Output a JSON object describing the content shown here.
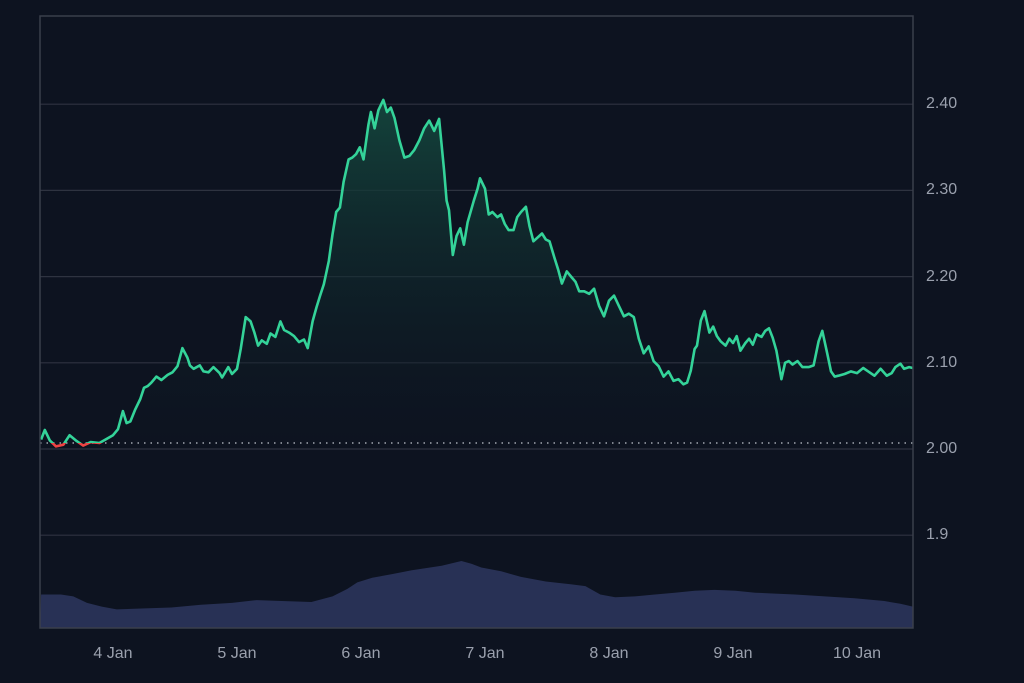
{
  "chart_data": {
    "type": "area",
    "title": "",
    "xlabel": "",
    "ylabel": "",
    "ylim": [
      1.81,
      2.51
    ],
    "grid": true,
    "legend": null,
    "baseline": 2.007,
    "colors": {
      "background": "#0d1320",
      "grid": "#2e3340",
      "border": "#3a3f4b",
      "line_up": "#34d399",
      "line_down": "#ef4444",
      "fill_top": "#14463d",
      "volume": "#2a3358",
      "tick_text": "#9aa0ad",
      "baseline_dots": "#c8ccd4"
    },
    "y_ticks": [
      {
        "label": "2.40",
        "value": 2.4
      },
      {
        "label": "2.30",
        "value": 2.3
      },
      {
        "label": "2.20",
        "value": 2.2
      },
      {
        "label": "2.10",
        "value": 2.1
      },
      {
        "label": "2.00",
        "value": 2.0
      },
      {
        "label": "1.9",
        "value": 1.9
      }
    ],
    "x_ticks": [
      {
        "label": "4 Jan",
        "day": 4.0
      },
      {
        "label": "5 Jan",
        "day": 5.0
      },
      {
        "label": "6 Jan",
        "day": 6.0
      },
      {
        "label": "7 Jan",
        "day": 7.0
      },
      {
        "label": "8 Jan",
        "day": 8.0
      },
      {
        "label": "9 Jan",
        "day": 9.0
      },
      {
        "label": "10 Jan",
        "day": 10.0
      }
    ],
    "x_range_days": [
      3.42,
      10.45
    ],
    "series": [
      {
        "name": "price",
        "x": [
          3.42,
          3.45,
          3.49,
          3.54,
          3.6,
          3.65,
          3.7,
          3.76,
          3.82,
          3.89,
          3.94,
          4.0,
          4.04,
          4.08,
          4.11,
          4.14,
          4.18,
          4.22,
          4.25,
          4.28,
          4.31,
          4.35,
          4.39,
          4.44,
          4.48,
          4.52,
          4.56,
          4.6,
          4.62,
          4.65,
          4.7,
          4.73,
          4.77,
          4.81,
          4.86,
          4.88,
          4.93,
          4.96,
          5.0,
          5.03,
          5.07,
          5.11,
          5.14,
          5.17,
          5.2,
          5.24,
          5.27,
          5.31,
          5.35,
          5.38,
          5.42,
          5.46,
          5.5,
          5.54,
          5.57,
          5.61,
          5.64,
          5.67,
          5.7,
          5.74,
          5.77,
          5.8,
          5.83,
          5.86,
          5.9,
          5.93,
          5.96,
          5.99,
          6.02,
          6.06,
          6.08,
          6.11,
          6.14,
          6.18,
          6.21,
          6.24,
          6.27,
          6.31,
          6.35,
          6.39,
          6.43,
          6.47,
          6.51,
          6.55,
          6.59,
          6.63,
          6.67,
          6.69,
          6.71,
          6.74,
          6.77,
          6.8,
          6.83,
          6.86,
          6.91,
          6.94,
          6.96,
          7.0,
          7.03,
          7.06,
          7.1,
          7.13,
          7.16,
          7.19,
          7.23,
          7.26,
          7.29,
          7.33,
          7.36,
          7.39,
          7.43,
          7.46,
          7.49,
          7.52,
          7.56,
          7.59,
          7.62,
          7.66,
          7.7,
          7.73,
          7.76,
          7.8,
          7.84,
          7.88,
          7.92,
          7.96,
          8.0,
          8.04,
          8.08,
          8.12,
          8.16,
          8.2,
          8.24,
          8.28,
          8.32,
          8.36,
          8.4,
          8.44,
          8.48,
          8.52,
          8.56,
          8.6,
          8.63,
          8.66,
          8.69,
          8.71,
          8.74,
          8.77,
          8.81,
          8.84,
          8.87,
          8.9,
          8.94,
          8.97,
          9.0,
          9.03,
          9.06,
          9.1,
          9.13,
          9.16,
          9.19,
          9.23,
          9.26,
          9.29,
          9.32,
          9.35,
          9.39,
          9.42,
          9.45,
          9.48,
          9.52,
          9.56,
          9.61,
          9.65,
          9.69,
          9.72,
          9.76,
          9.79,
          9.82,
          9.85,
          9.9,
          9.95,
          10.0,
          10.05,
          10.09,
          10.14,
          10.19,
          10.24,
          10.28,
          10.31,
          10.35,
          10.38,
          10.42,
          10.45
        ],
        "values": [
          2.011,
          2.022,
          2.01,
          2.003,
          2.005,
          2.016,
          2.01,
          2.004,
          2.008,
          2.007,
          2.011,
          2.016,
          2.023,
          2.044,
          2.03,
          2.032,
          2.046,
          2.058,
          2.071,
          2.073,
          2.077,
          2.084,
          2.08,
          2.086,
          2.089,
          2.096,
          2.117,
          2.106,
          2.097,
          2.093,
          2.097,
          2.09,
          2.089,
          2.095,
          2.088,
          2.083,
          2.095,
          2.087,
          2.093,
          2.116,
          2.153,
          2.148,
          2.135,
          2.12,
          2.126,
          2.122,
          2.134,
          2.13,
          2.148,
          2.138,
          2.135,
          2.131,
          2.124,
          2.127,
          2.117,
          2.148,
          2.164,
          2.178,
          2.191,
          2.218,
          2.249,
          2.275,
          2.28,
          2.31,
          2.336,
          2.338,
          2.342,
          2.35,
          2.336,
          2.376,
          2.391,
          2.372,
          2.393,
          2.405,
          2.391,
          2.396,
          2.384,
          2.358,
          2.338,
          2.34,
          2.347,
          2.358,
          2.372,
          2.381,
          2.369,
          2.383,
          2.323,
          2.288,
          2.277,
          2.225,
          2.247,
          2.256,
          2.237,
          2.263,
          2.288,
          2.302,
          2.314,
          2.302,
          2.272,
          2.275,
          2.269,
          2.272,
          2.261,
          2.254,
          2.254,
          2.269,
          2.275,
          2.281,
          2.258,
          2.241,
          2.246,
          2.25,
          2.243,
          2.241,
          2.222,
          2.208,
          2.192,
          2.206,
          2.199,
          2.194,
          2.183,
          2.183,
          2.18,
          2.186,
          2.166,
          2.154,
          2.172,
          2.178,
          2.166,
          2.154,
          2.157,
          2.153,
          2.128,
          2.111,
          2.119,
          2.102,
          2.096,
          2.084,
          2.09,
          2.079,
          2.081,
          2.075,
          2.077,
          2.091,
          2.116,
          2.12,
          2.149,
          2.16,
          2.135,
          2.142,
          2.131,
          2.125,
          2.12,
          2.128,
          2.123,
          2.131,
          2.114,
          2.123,
          2.128,
          2.121,
          2.133,
          2.13,
          2.137,
          2.14,
          2.129,
          2.114,
          2.081,
          2.1,
          2.102,
          2.098,
          2.102,
          2.095,
          2.095,
          2.097,
          2.125,
          2.137,
          2.111,
          2.09,
          2.084,
          2.085,
          2.087,
          2.09,
          2.088,
          2.094,
          2.09,
          2.085,
          2.093,
          2.085,
          2.088,
          2.095,
          2.099,
          2.093,
          2.095,
          2.094
        ]
      },
      {
        "name": "volume",
        "x": [
          3.42,
          3.58,
          3.68,
          3.79,
          3.91,
          4.03,
          4.23,
          4.47,
          4.71,
          4.96,
          5.16,
          5.36,
          5.6,
          5.77,
          5.89,
          5.97,
          6.09,
          6.25,
          6.41,
          6.65,
          6.81,
          6.89,
          6.97,
          7.13,
          7.29,
          7.49,
          7.69,
          7.81,
          7.93,
          8.05,
          8.21,
          8.37,
          8.53,
          8.69,
          8.85,
          9.02,
          9.18,
          9.34,
          9.5,
          9.74,
          9.98,
          10.22,
          10.35,
          10.45
        ],
        "relative_height": [
          0.36,
          0.36,
          0.34,
          0.27,
          0.23,
          0.2,
          0.21,
          0.22,
          0.25,
          0.27,
          0.3,
          0.29,
          0.28,
          0.34,
          0.42,
          0.49,
          0.54,
          0.58,
          0.62,
          0.67,
          0.72,
          0.69,
          0.65,
          0.61,
          0.55,
          0.5,
          0.47,
          0.45,
          0.36,
          0.33,
          0.34,
          0.36,
          0.38,
          0.4,
          0.41,
          0.4,
          0.38,
          0.37,
          0.36,
          0.34,
          0.32,
          0.29,
          0.26,
          0.23
        ]
      }
    ]
  }
}
